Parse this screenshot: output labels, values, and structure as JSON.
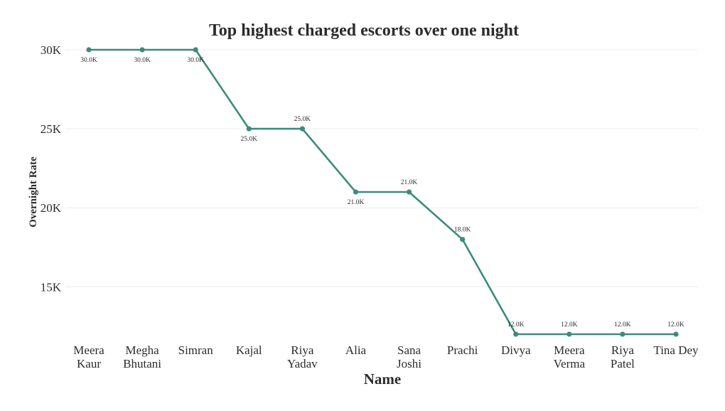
{
  "chart_data": {
    "type": "line",
    "title": "Top highest charged escorts over one night",
    "xlabel": "Name",
    "ylabel": "Overnight Rate",
    "categories": [
      [
        "Meera",
        "Kaur"
      ],
      [
        "Megha",
        "Bhutani"
      ],
      [
        "Simran"
      ],
      [
        "Kajal"
      ],
      [
        "Riya",
        "Yadav"
      ],
      [
        "Alia"
      ],
      [
        "Sana",
        "Joshi"
      ],
      [
        "Prachi"
      ],
      [
        "Divya"
      ],
      [
        "Meera",
        "Verma"
      ],
      [
        "Riya",
        "Patel"
      ],
      [
        "Tina Dey"
      ]
    ],
    "series": [
      {
        "values": [
          30000,
          30000,
          30000,
          25000,
          25000,
          21000,
          21000,
          18000,
          12000,
          12000,
          12000,
          12000
        ],
        "data_labels": [
          "30.0K",
          "30.0K",
          "30.0K",
          "25.0K",
          "25.0K",
          "21.0K",
          "21.0K",
          "18.0K",
          "12.0K",
          "12.0K",
          "12.0K",
          "12.0K"
        ],
        "label_positions": [
          "below",
          "below",
          "below",
          "below",
          "above",
          "below",
          "above",
          "above",
          "above",
          "above",
          "above",
          "above"
        ]
      }
    ],
    "yticks": [
      15000,
      20000,
      25000,
      30000
    ],
    "ytick_labels": [
      "15K",
      "20K",
      "25K",
      "30K"
    ],
    "ylim": [
      12000,
      30000
    ],
    "grid": "horizontal",
    "legend": "none",
    "colors": {
      "line": "#3d8b7d",
      "marker": "#3d8b7d"
    }
  }
}
